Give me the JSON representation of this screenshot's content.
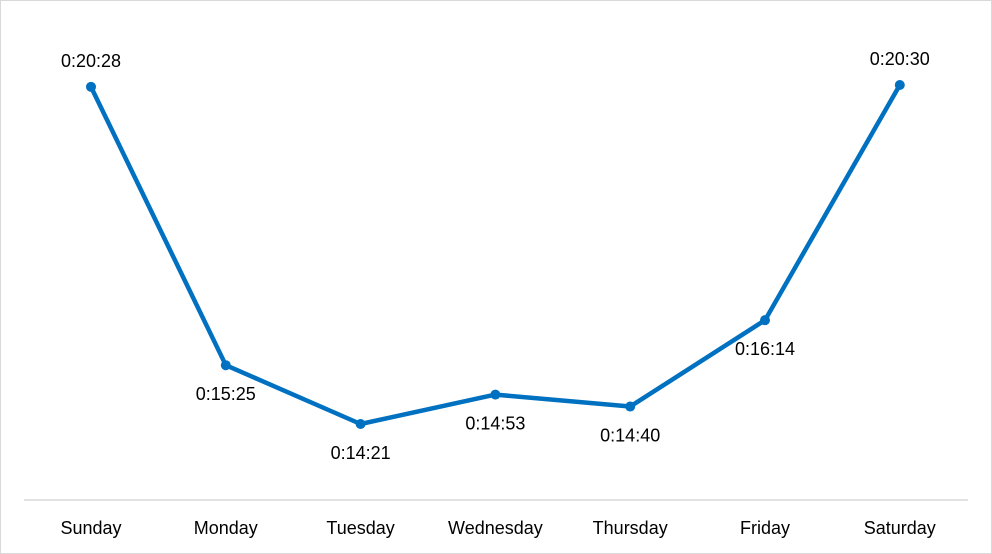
{
  "chart_data": {
    "type": "line",
    "title": "",
    "xlabel": "",
    "ylabel": "",
    "categories": [
      "Sunday",
      "Monday",
      "Tuesday",
      "Wednesday",
      "Thursday",
      "Friday",
      "Saturday"
    ],
    "series": [
      {
        "values_seconds": [
          1228,
          925,
          861,
          893,
          880,
          974,
          1230
        ],
        "labels": [
          "0:20:28",
          "0:15:25",
          "0:14:21",
          "0:14:53",
          "0:14:40",
          "0:16:14",
          "0:20:30"
        ]
      }
    ],
    "ylim_seconds": [
      760,
      1260
    ],
    "grid": false,
    "legend": "none",
    "colors": {
      "line": "#0070c0",
      "axis": "#d9d9d9",
      "text": "#000000"
    }
  }
}
